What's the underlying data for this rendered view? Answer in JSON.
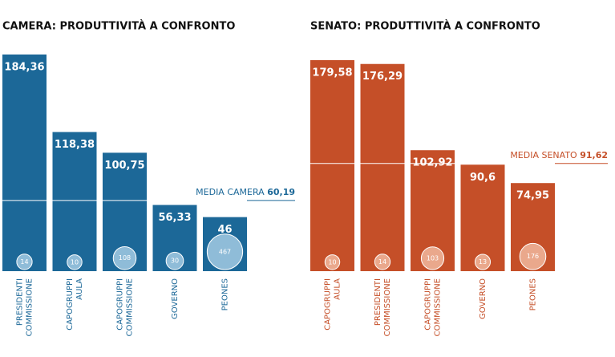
{
  "chart_data": [
    {
      "type": "bar",
      "title": "CAMERA: PRODUTTIVITÀ A CONFRONTO",
      "categories": [
        "PRESIDENTI COMMISSIONE",
        "CAPOGRUPPI AULA",
        "CAPOGRUPPI COMMISSIONE",
        "GOVERNO",
        "PEONES"
      ],
      "values": [
        184.36,
        118.38,
        100.75,
        56.33,
        46
      ],
      "value_labels": [
        "184,36",
        "118,38",
        "100,75",
        "56,33",
        "46"
      ],
      "counts": [
        14,
        10,
        108,
        30,
        467
      ],
      "mean_label": "MEDIA CAMERA",
      "mean": {
        "value": 60.19,
        "label": "60,19"
      },
      "color": "#1c6898",
      "circle_color": "#8fbcd8",
      "accent": "#1c6898"
    },
    {
      "type": "bar",
      "title": "SENATO: PRODUTTIVITÀ A CONFRONTO",
      "categories": [
        "CAPOGRUPPI AULA",
        "PRESIDENTI COMMISSIONE",
        "CAPOGRUPPI COMMISSIONE",
        "GOVERNO",
        "PEONES"
      ],
      "values": [
        179.58,
        176.29,
        102.92,
        90.6,
        74.95
      ],
      "value_labels": [
        "179,58",
        "176,29",
        "102,92",
        "90,6",
        "74,95"
      ],
      "counts": [
        10,
        14,
        103,
        13,
        176
      ],
      "mean_label": "MEDIA SENATO",
      "mean": {
        "value": 91.62,
        "label": "91,62"
      },
      "color": "#c54f28",
      "circle_color": "#eaa88c",
      "accent": "#c54f28"
    }
  ]
}
